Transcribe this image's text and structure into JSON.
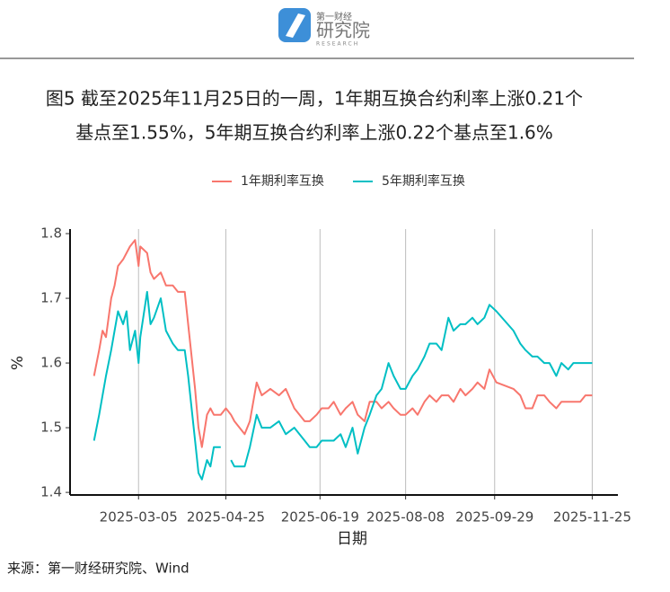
{
  "header": {
    "brand_small": "第一财经",
    "brand_large": "研究院",
    "brand_sub": "RESEARCH"
  },
  "chart_data": {
    "type": "line",
    "title": [
      "图5  截至2025年11月25日的一周，1年期互换合约利率上涨0.21个",
      "基点至1.55%，5年期互换合约利率上涨0.22个基点至1.6%"
    ],
    "x_label": "日期",
    "y_label": "%",
    "legend": "top",
    "grid": "x",
    "xlim": [
      "2025-01-24",
      "2025-12-10"
    ],
    "xticks": [
      "2025-03-05",
      "2025-04-25",
      "2025-06-19",
      "2025-08-08",
      "2025-09-29",
      "2025-11-25"
    ],
    "ylim": [
      1.396,
      1.807
    ],
    "yticks": [
      1.4,
      1.5,
      1.6,
      1.7,
      1.8
    ],
    "x": [
      "2025-02-07",
      "2025-02-10",
      "2025-02-12",
      "2025-02-14",
      "2025-02-17",
      "2025-02-19",
      "2025-02-21",
      "2025-02-24",
      "2025-02-26",
      "2025-02-28",
      "2025-03-03",
      "2025-03-05",
      "2025-03-06",
      "2025-03-10",
      "2025-03-12",
      "2025-03-14",
      "2025-03-18",
      "2025-03-21",
      "2025-03-25",
      "2025-03-28",
      "2025-04-01",
      "2025-04-03",
      "2025-04-07",
      "2025-04-09",
      "2025-04-11",
      "2025-04-14",
      "2025-04-16",
      "2025-04-18",
      "2025-04-22",
      "2025-04-25",
      "2025-04-28",
      "2025-04-30",
      "2025-05-06",
      "2025-05-09",
      "2025-05-13",
      "2025-05-16",
      "2025-05-21",
      "2025-05-26",
      "2025-05-30",
      "2025-06-04",
      "2025-06-10",
      "2025-06-13",
      "2025-06-17",
      "2025-06-20",
      "2025-06-24",
      "2025-06-27",
      "2025-07-01",
      "2025-07-04",
      "2025-07-08",
      "2025-07-11",
      "2025-07-15",
      "2025-07-18",
      "2025-07-22",
      "2025-07-25",
      "2025-07-29",
      "2025-08-01",
      "2025-08-05",
      "2025-08-08",
      "2025-08-12",
      "2025-08-15",
      "2025-08-19",
      "2025-08-22",
      "2025-08-26",
      "2025-08-29",
      "2025-09-02",
      "2025-09-05",
      "2025-09-09",
      "2025-09-12",
      "2025-09-16",
      "2025-09-19",
      "2025-09-23",
      "2025-09-26",
      "2025-09-30",
      "2025-10-10",
      "2025-10-14",
      "2025-10-17",
      "2025-10-21",
      "2025-10-24",
      "2025-10-28",
      "2025-10-31",
      "2025-11-04",
      "2025-11-07",
      "2025-11-11",
      "2025-11-14",
      "2025-11-18",
      "2025-11-21",
      "2025-11-25"
    ],
    "series": [
      {
        "name": "1年期利率互换",
        "color": "#F8766D",
        "values": [
          1.58,
          1.62,
          1.65,
          1.64,
          1.7,
          1.72,
          1.75,
          1.76,
          1.77,
          1.78,
          1.79,
          1.75,
          1.78,
          1.77,
          1.74,
          1.73,
          1.74,
          1.72,
          1.72,
          1.71,
          1.71,
          1.66,
          1.56,
          1.5,
          1.47,
          1.52,
          1.53,
          1.52,
          1.52,
          1.53,
          1.52,
          1.51,
          1.49,
          1.51,
          1.57,
          1.55,
          1.56,
          1.55,
          1.56,
          1.53,
          1.51,
          1.51,
          1.52,
          1.53,
          1.53,
          1.54,
          1.52,
          1.53,
          1.54,
          1.52,
          1.51,
          1.54,
          1.54,
          1.53,
          1.54,
          1.53,
          1.52,
          1.52,
          1.53,
          1.52,
          1.54,
          1.55,
          1.54,
          1.55,
          1.55,
          1.54,
          1.56,
          1.55,
          1.56,
          1.57,
          1.56,
          1.59,
          1.57,
          1.56,
          1.55,
          1.53,
          1.53,
          1.55,
          1.55,
          1.54,
          1.53,
          1.54,
          1.54,
          1.54,
          1.54,
          1.55,
          1.55
        ]
      },
      {
        "name": "5年期利率互换",
        "color": "#00BFC4",
        "values": [
          1.48,
          1.52,
          1.55,
          1.58,
          1.62,
          1.65,
          1.68,
          1.66,
          1.68,
          1.62,
          1.65,
          1.6,
          1.64,
          1.71,
          1.66,
          1.67,
          1.7,
          1.65,
          1.63,
          1.62,
          1.62,
          1.58,
          1.48,
          1.43,
          1.42,
          1.45,
          1.44,
          1.47,
          1.47,
          null,
          1.45,
          1.44,
          1.44,
          1.47,
          1.52,
          1.5,
          1.5,
          1.51,
          1.49,
          1.5,
          1.48,
          1.47,
          1.47,
          1.48,
          1.48,
          1.48,
          1.49,
          1.47,
          1.5,
          1.46,
          1.5,
          1.52,
          1.55,
          1.56,
          1.6,
          1.58,
          1.56,
          1.56,
          1.58,
          1.59,
          1.61,
          1.63,
          1.63,
          1.62,
          1.67,
          1.65,
          1.66,
          1.66,
          1.67,
          1.66,
          1.67,
          1.69,
          1.68,
          1.65,
          1.63,
          1.62,
          1.61,
          1.61,
          1.6,
          1.6,
          1.58,
          1.6,
          1.59,
          1.6,
          1.6,
          1.6,
          1.6
        ]
      }
    ],
    "source": "来源：第一财经研究院、Wind"
  }
}
